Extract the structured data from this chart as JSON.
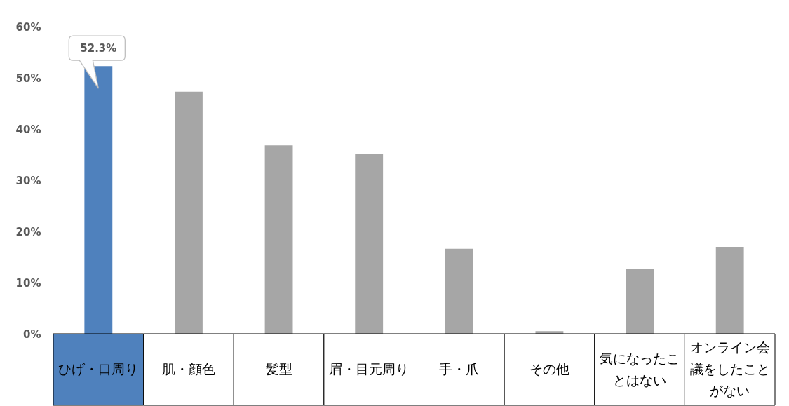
{
  "chart_data": {
    "type": "bar",
    "categories": [
      "ひげ・口周り",
      "肌・顔色",
      "髪型",
      "眉・目元周り",
      "手・爪",
      "その他",
      "気になったことはない",
      "オンライン会議をしたことがない"
    ],
    "values": [
      52.3,
      47.3,
      36.8,
      35.1,
      16.6,
      0.5,
      12.7,
      17.0
    ],
    "colors": [
      "#4f81bd",
      "#a6a6a6",
      "#a6a6a6",
      "#a6a6a6",
      "#a6a6a6",
      "#a6a6a6",
      "#a6a6a6",
      "#a6a6a6"
    ],
    "value_labels": [
      "52.3%",
      null,
      null,
      null,
      null,
      null,
      null,
      null
    ],
    "ylim": [
      0,
      60
    ],
    "yticks": [
      {
        "value": 0,
        "label": "0%"
      },
      {
        "value": 10,
        "label": "10%"
      },
      {
        "value": 20,
        "label": "20%"
      },
      {
        "value": 30,
        "label": "30%"
      },
      {
        "value": 40,
        "label": "40%"
      },
      {
        "value": 50,
        "label": "50%"
      },
      {
        "value": 60,
        "label": "60%"
      }
    ]
  }
}
